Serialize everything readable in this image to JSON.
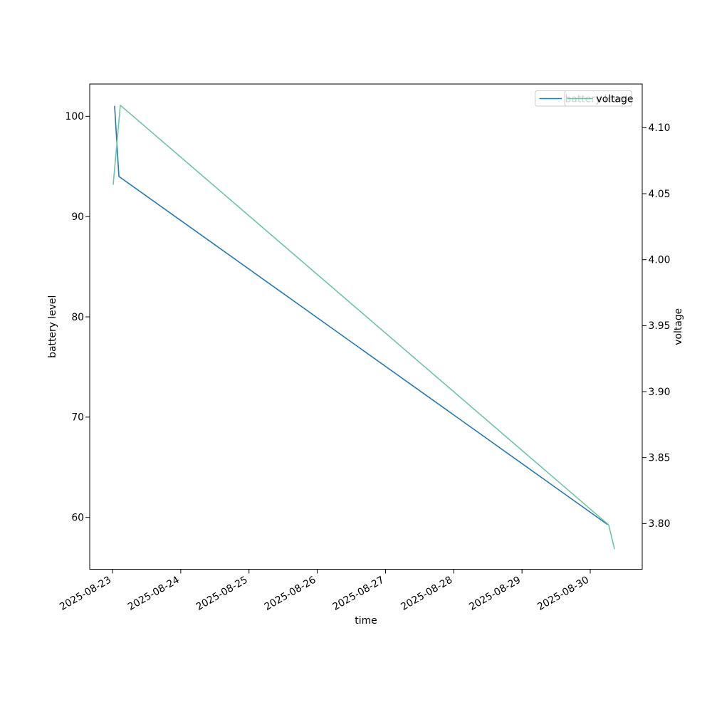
{
  "figure": {
    "background": "#ffffff"
  },
  "chart_data": {
    "type": "line",
    "title": "",
    "xlabel": "time",
    "x_axis": {
      "label": "time",
      "tick_labels": [
        "2025-08-23",
        "2025-08-24",
        "2025-08-25",
        "2025-08-26",
        "2025-08-27",
        "2025-08-28",
        "2025-08-29",
        "2025-08-30"
      ],
      "tick_day_offsets": [
        0,
        1,
        2,
        3,
        4,
        5,
        6,
        7
      ],
      "min_day_offset": -0.3338,
      "max_day_offset": 7.7615,
      "tick_rotation_deg": 30
    },
    "y_left": {
      "label": "battery level",
      "ticks": [
        100,
        90,
        80,
        70,
        60
      ],
      "tick_labels": [
        "100",
        "90",
        "80",
        "70",
        "60"
      ],
      "min": 54.83,
      "max": 103.22
    },
    "y_right": {
      "label": "voltage",
      "ticks": [
        4.1,
        4.05,
        4.0,
        3.95,
        3.9,
        3.85,
        3.8
      ],
      "tick_labels": [
        "4.10",
        "4.05",
        "4.00",
        "3.95",
        "3.90",
        "3.85",
        "3.80"
      ],
      "min": 3.7654,
      "max": 4.1331
    },
    "grid": false,
    "series": [
      {
        "name": "battery level",
        "axis": "left",
        "color": "#2478b4",
        "points": [
          {
            "time": "2025-08-23 00:45",
            "day_offset": 0.031,
            "value": 101.0
          },
          {
            "time": "2025-08-23 02:15",
            "day_offset": 0.094,
            "value": 94.0
          },
          {
            "time": "2025-08-30 06:00",
            "day_offset": 7.25,
            "value": 59.3
          }
        ]
      },
      {
        "name": "voltage",
        "axis": "right",
        "color": "#6dc5a1",
        "points": [
          {
            "time": "2025-08-23 00:15",
            "day_offset": 0.01,
            "value": 4.057
          },
          {
            "time": "2025-08-23 02:45",
            "day_offset": 0.115,
            "value": 4.117
          },
          {
            "time": "2025-08-30 06:30",
            "day_offset": 7.27,
            "value": 3.799
          },
          {
            "time": "2025-08-30 08:30",
            "day_offset": 7.354,
            "value": 3.781
          }
        ]
      }
    ],
    "legend": {
      "position": "upper-right",
      "frame_alpha": 0.8,
      "entries": [
        {
          "label": "battery level",
          "color": "#2478b4"
        },
        {
          "label": "voltage",
          "color": "#6dc5a1"
        }
      ]
    }
  }
}
